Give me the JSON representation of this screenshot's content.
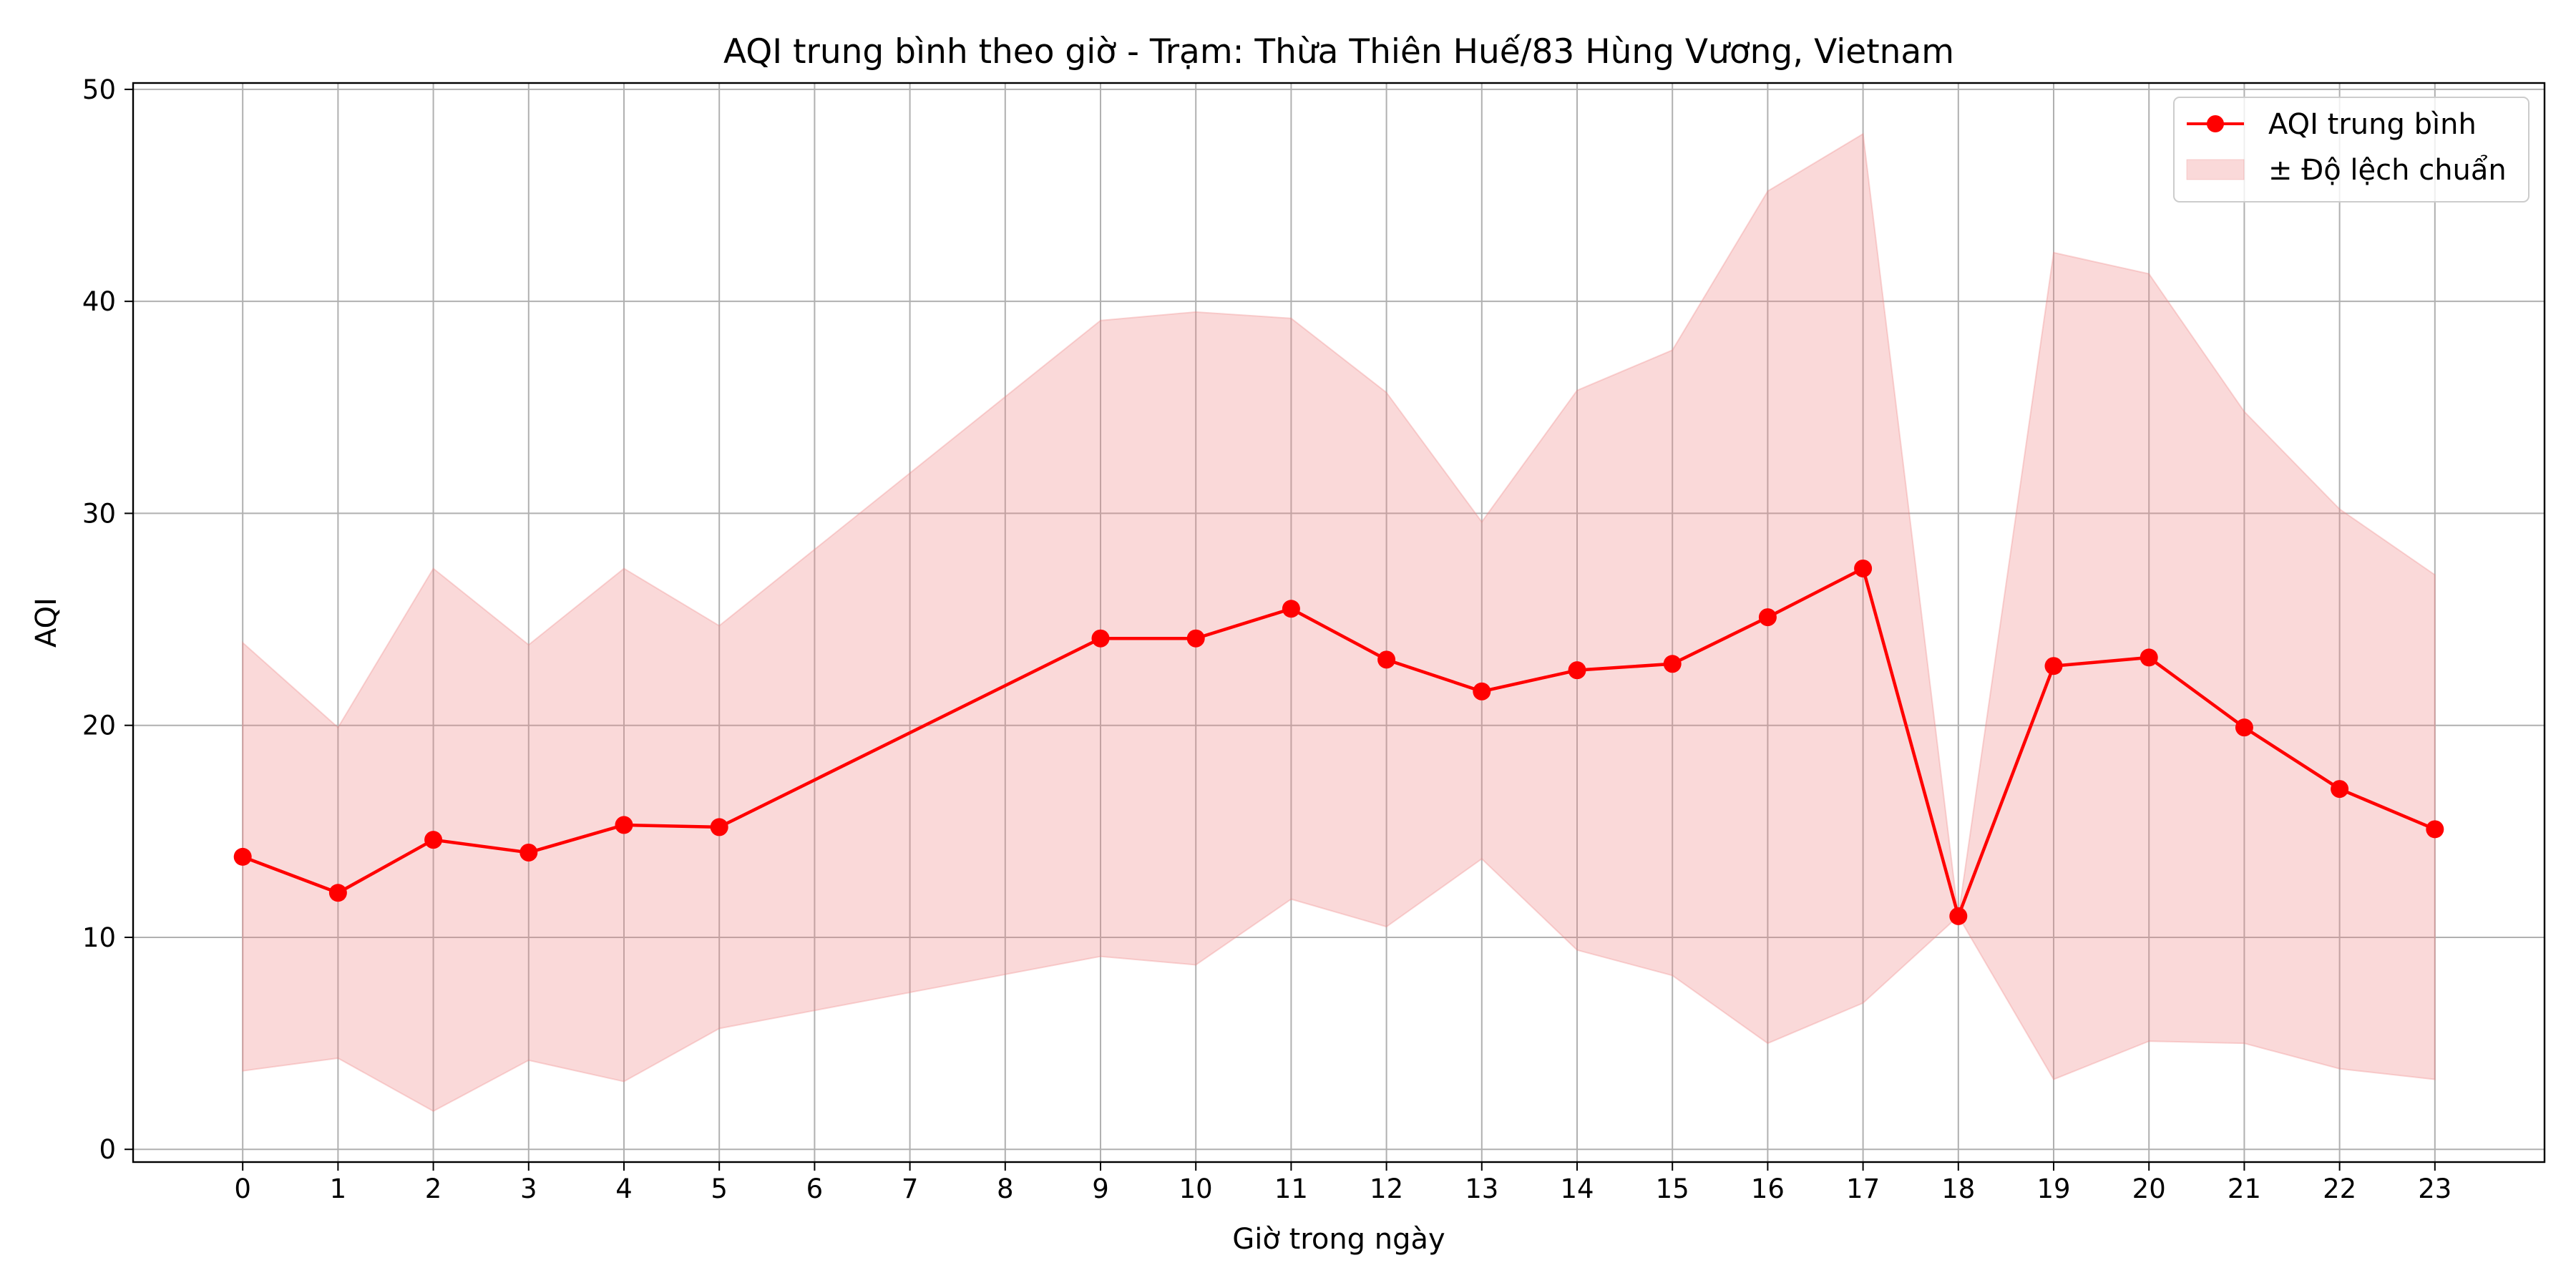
{
  "chart_data": {
    "type": "line",
    "title": "AQI trung bình theo giờ - Trạm: Thừa Thiên Huế/83 Hùng Vương, Vietnam",
    "xlabel": "Giờ trong ngày",
    "ylabel": "AQI",
    "x_ticks": [
      "0",
      "1",
      "2",
      "3",
      "4",
      "5",
      "6",
      "7",
      "8",
      "9",
      "10",
      "11",
      "12",
      "13",
      "14",
      "15",
      "16",
      "17",
      "18",
      "19",
      "20",
      "21",
      "22",
      "23"
    ],
    "y_ticks": [
      "0",
      "10",
      "20",
      "30",
      "40",
      "50"
    ],
    "xlim": [
      -1.15,
      24.15
    ],
    "ylim": [
      -0.6,
      50.3
    ],
    "grid": true,
    "legend_position": "upper right",
    "series": [
      {
        "name": "AQI trung bình",
        "color": "#ff0000",
        "marker": "circle",
        "x": [
          0,
          1,
          2,
          3,
          4,
          5,
          9,
          10,
          11,
          12,
          13,
          14,
          15,
          16,
          17,
          18,
          19,
          20,
          21,
          22,
          23
        ],
        "values": [
          13.8,
          12.1,
          14.6,
          14.0,
          15.3,
          15.2,
          24.1,
          24.1,
          25.5,
          23.1,
          21.6,
          22.6,
          22.9,
          25.1,
          27.4,
          11.0,
          22.8,
          23.2,
          19.9,
          17.0,
          15.1
        ]
      }
    ],
    "band": {
      "name": "± Độ lệch chuẩn",
      "color": "#f08080",
      "x": [
        0,
        1,
        2,
        3,
        4,
        5,
        9,
        10,
        11,
        12,
        13,
        14,
        15,
        16,
        17,
        18,
        19,
        20,
        21,
        22,
        23
      ],
      "upper": [
        23.9,
        19.9,
        27.4,
        23.8,
        27.4,
        24.7,
        39.1,
        39.5,
        39.2,
        35.7,
        29.6,
        35.8,
        37.7,
        45.2,
        47.9,
        11.0,
        42.3,
        41.3,
        34.8,
        30.2,
        27.1
      ],
      "lower": [
        3.7,
        4.3,
        1.8,
        4.2,
        3.2,
        5.7,
        9.1,
        8.7,
        11.8,
        10.5,
        13.7,
        9.4,
        8.2,
        5.0,
        6.9,
        11.0,
        3.3,
        5.1,
        5.0,
        3.8,
        3.3
      ]
    }
  }
}
